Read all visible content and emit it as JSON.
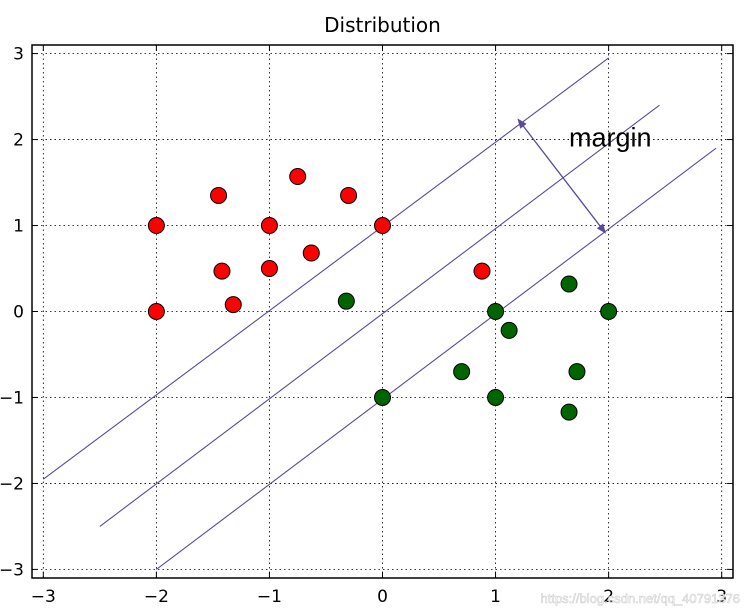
{
  "chart_data": {
    "type": "scatter",
    "title": "Distribution",
    "xlim": [
      -3.1,
      3.1
    ],
    "ylim": [
      -3.1,
      3.1
    ],
    "xticks": [
      -3,
      -2,
      -1,
      0,
      1,
      2,
      3
    ],
    "yticks": [
      -3,
      -2,
      -1,
      0,
      1,
      2,
      3
    ],
    "xtick_labels": [
      "−3",
      "−2",
      "−1",
      "0",
      "1",
      "2",
      "3"
    ],
    "ytick_labels": [
      "−3",
      "−2",
      "−1",
      "0",
      "1",
      "2",
      "3"
    ],
    "grid": "dotted",
    "series": [
      {
        "name": "red",
        "color": "#ff0000",
        "points": [
          [
            -2.0,
            1.0
          ],
          [
            -1.45,
            1.35
          ],
          [
            -1.42,
            0.47
          ],
          [
            -1.32,
            0.08
          ],
          [
            -2.0,
            0.0
          ],
          [
            -1.0,
            1.0
          ],
          [
            -1.0,
            0.5
          ],
          [
            -0.75,
            1.57
          ],
          [
            -0.63,
            0.68
          ],
          [
            -0.3,
            1.35
          ],
          [
            0.0,
            1.0
          ],
          [
            0.88,
            0.47
          ]
        ]
      },
      {
        "name": "green",
        "color": "#006400",
        "points": [
          [
            -0.32,
            0.12
          ],
          [
            0.0,
            -1.0
          ],
          [
            0.7,
            -0.7
          ],
          [
            1.0,
            0.0
          ],
          [
            1.12,
            -0.22
          ],
          [
            1.0,
            -1.0
          ],
          [
            1.65,
            0.32
          ],
          [
            1.72,
            -0.7
          ],
          [
            2.0,
            0.0
          ],
          [
            1.65,
            -1.17
          ]
        ]
      }
    ],
    "lines": [
      {
        "name": "upper-margin",
        "color": "#5b4a9a",
        "x": [
          -3.0,
          2.0
        ],
        "y": [
          -1.95,
          2.95
        ]
      },
      {
        "name": "decision-boundary",
        "color": "#5b4a9a",
        "x": [
          -2.5,
          2.45
        ],
        "y": [
          -2.5,
          2.4
        ]
      },
      {
        "name": "lower-margin",
        "color": "#5b4a9a",
        "x": [
          -2.0,
          2.95
        ],
        "y": [
          -3.0,
          1.9
        ]
      }
    ],
    "annotation": {
      "text": "margin",
      "arrow_from": [
        1.22,
        2.2
      ],
      "arrow_to": [
        1.95,
        0.95
      ],
      "color": "#5b4a9a",
      "text_position": [
        1.65,
        1.92
      ]
    }
  },
  "watermark": "https://blog.csdn.net/qq_40791376"
}
